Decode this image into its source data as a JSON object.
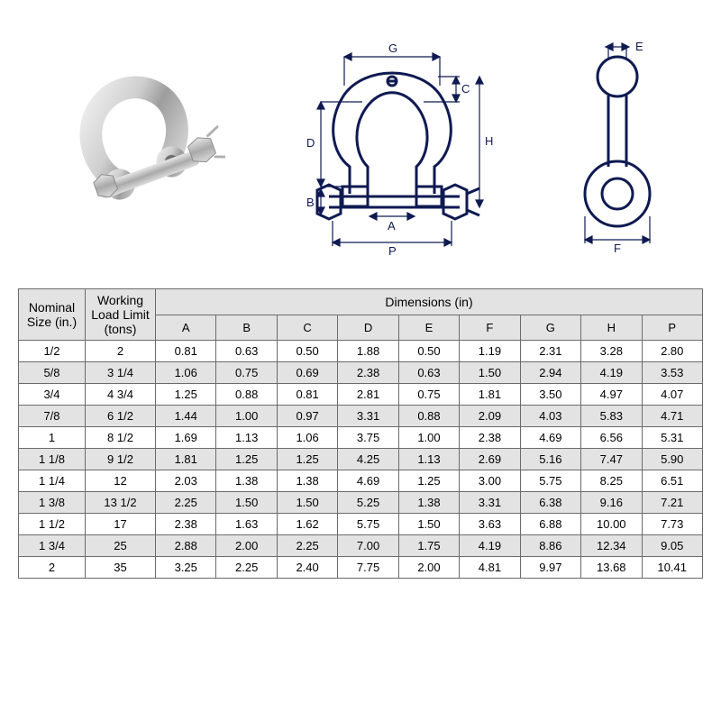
{
  "headers": {
    "nominal": "Nominal Size (in.)",
    "wll": "Working Load Limit (tons)",
    "dimensions_group": "Dimensions (in)",
    "dim_cols": [
      "A",
      "B",
      "C",
      "D",
      "E",
      "F",
      "G",
      "H",
      "P"
    ]
  },
  "diagrams": {
    "stroke": "#0f1a52",
    "labels": [
      "A",
      "B",
      "C",
      "D",
      "E",
      "F",
      "G",
      "H",
      "P"
    ]
  },
  "rows": [
    {
      "nom": "1/2",
      "wll": "2",
      "dims": [
        "0.81",
        "0.63",
        "0.50",
        "1.88",
        "0.50",
        "1.19",
        "2.31",
        "3.28",
        "2.80"
      ],
      "alt": false
    },
    {
      "nom": "5/8",
      "wll": "3  1/4",
      "dims": [
        "1.06",
        "0.75",
        "0.69",
        "2.38",
        "0.63",
        "1.50",
        "2.94",
        "4.19",
        "3.53"
      ],
      "alt": true
    },
    {
      "nom": "3/4",
      "wll": "4  3/4",
      "dims": [
        "1.25",
        "0.88",
        "0.81",
        "2.81",
        "0.75",
        "1.81",
        "3.50",
        "4.97",
        "4.07"
      ],
      "alt": false
    },
    {
      "nom": "7/8",
      "wll": "6  1/2",
      "dims": [
        "1.44",
        "1.00",
        "0.97",
        "3.31",
        "0.88",
        "2.09",
        "4.03",
        "5.83",
        "4.71"
      ],
      "alt": true
    },
    {
      "nom": "1",
      "wll": "8  1/2",
      "dims": [
        "1.69",
        "1.13",
        "1.06",
        "3.75",
        "1.00",
        "2.38",
        "4.69",
        "6.56",
        "5.31"
      ],
      "alt": false
    },
    {
      "nom": "1 1/8",
      "wll": "9  1/2",
      "dims": [
        "1.81",
        "1.25",
        "1.25",
        "4.25",
        "1.13",
        "2.69",
        "5.16",
        "7.47",
        "5.90"
      ],
      "alt": true
    },
    {
      "nom": "1 1/4",
      "wll": "12",
      "dims": [
        "2.03",
        "1.38",
        "1.38",
        "4.69",
        "1.25",
        "3.00",
        "5.75",
        "8.25",
        "6.51"
      ],
      "alt": false
    },
    {
      "nom": "1 3/8",
      "wll": "13  1/2",
      "dims": [
        "2.25",
        "1.50",
        "1.50",
        "5.25",
        "1.38",
        "3.31",
        "6.38",
        "9.16",
        "7.21"
      ],
      "alt": true
    },
    {
      "nom": "1 1/2",
      "wll": "17",
      "dims": [
        "2.38",
        "1.63",
        "1.62",
        "5.75",
        "1.50",
        "3.63",
        "6.88",
        "10.00",
        "7.73"
      ],
      "alt": false
    },
    {
      "nom": "1 3/4",
      "wll": "25",
      "dims": [
        "2.88",
        "2.00",
        "2.25",
        "7.00",
        "1.75",
        "4.19",
        "8.86",
        "12.34",
        "9.05"
      ],
      "alt": true
    },
    {
      "nom": "2",
      "wll": "35",
      "dims": [
        "3.25",
        "2.25",
        "2.40",
        "7.75",
        "2.00",
        "4.81",
        "9.97",
        "13.68",
        "10.41"
      ],
      "alt": false
    }
  ],
  "colors": {
    "border": "#6b6b6b",
    "header_bg": "#e3e3e3",
    "alt_bg": "#e3e3e3",
    "text": "#000000",
    "background": "#ffffff"
  }
}
